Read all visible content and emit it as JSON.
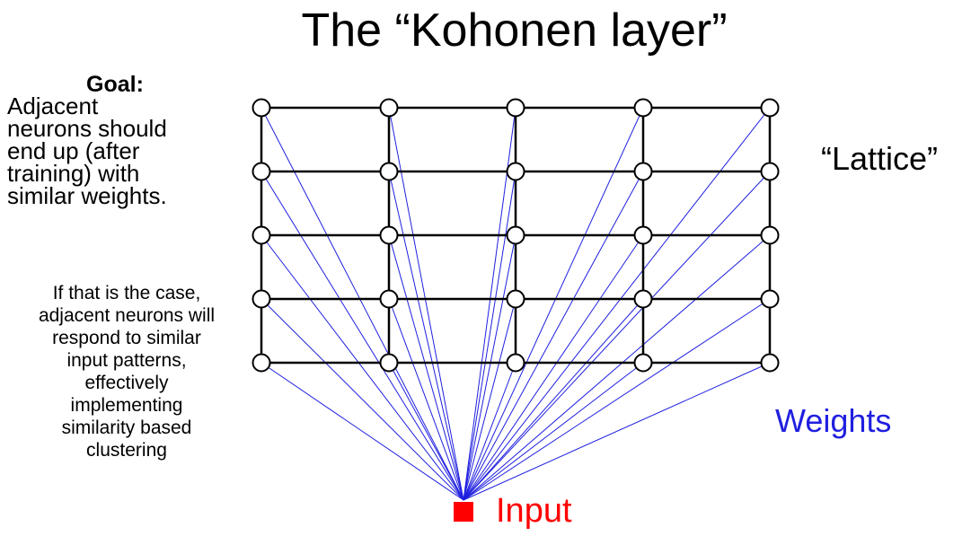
{
  "title": "The “Kohonen layer”",
  "goal": {
    "heading": "Goal:",
    "lines": [
      "Adjacent",
      "neurons should",
      "end up (after",
      "training) with",
      "similar weights."
    ]
  },
  "note_lines": [
    "If that is the case,",
    "adjacent neurons will",
    "respond to similar",
    "input patterns,",
    "effectively",
    "implementing",
    "similarity based",
    "clustering"
  ],
  "labels": {
    "lattice": "“Lattice”",
    "weights": "Weights",
    "input": "Input"
  },
  "lattice": {
    "rows": 5,
    "cols": 5
  },
  "colors": {
    "weights": "#1f1fe0",
    "input": "#ff0000",
    "lattice": "#000000"
  }
}
